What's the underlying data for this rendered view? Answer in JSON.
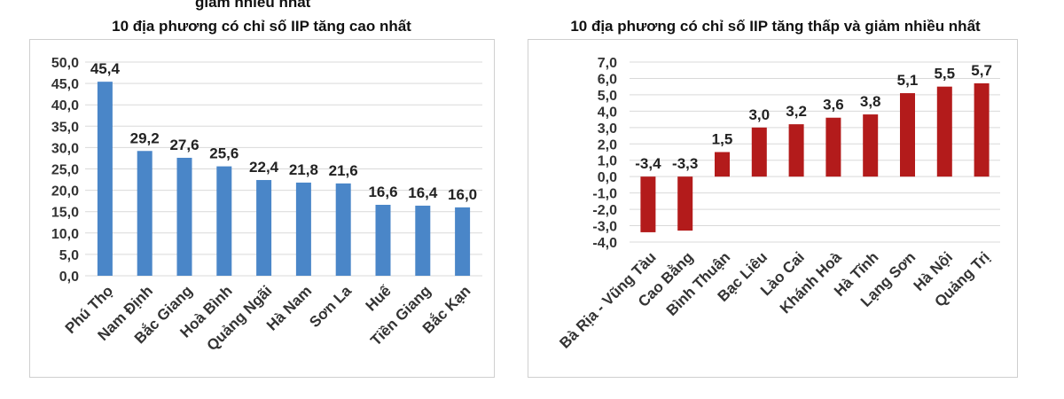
{
  "header_fragment": "giảm nhiều nhất",
  "chart_data": [
    {
      "type": "bar",
      "title": "10 địa phương có chỉ số IIP tăng cao nhất",
      "categories": [
        "Phú Thọ",
        "Nam Định",
        "Bắc Giang",
        "Hoà Bình",
        "Quảng Ngãi",
        "Hà Nam",
        "Sơn La",
        "Huế",
        "Tiền Giang",
        "Bắc Kạn"
      ],
      "values": [
        45.4,
        29.2,
        27.6,
        25.6,
        22.4,
        21.8,
        21.6,
        16.6,
        16.4,
        16.0
      ],
      "data_labels": [
        "45,4",
        "29,2",
        "27,6",
        "25,6",
        "22,4",
        "21,8",
        "21,6",
        "16,6",
        "16,4",
        "16,0"
      ],
      "ylim": [
        0,
        50
      ],
      "yticks": [
        "0,0",
        "5,0",
        "10,0",
        "15,0",
        "20,0",
        "25,0",
        "30,0",
        "35,0",
        "40,0",
        "45,0",
        "50,0"
      ],
      "grid": true,
      "bar_color": "#4a86c8"
    },
    {
      "type": "bar",
      "title": "10 địa phương có chỉ số IIP tăng thấp và giảm nhiều nhất",
      "categories": [
        "Bà Rịa - Vũng Tàu",
        "Cao Bằng",
        "Bình Thuận",
        "Bạc Liêu",
        "Lào Cai",
        "Khánh Hoà",
        "Hà Tĩnh",
        "Lạng Sơn",
        "Hà Nội",
        "Quảng Trị"
      ],
      "values": [
        -3.4,
        -3.3,
        1.5,
        3.0,
        3.2,
        3.6,
        3.8,
        5.1,
        5.5,
        5.7
      ],
      "data_labels": [
        "-3,4",
        "-3,3",
        "1,5",
        "3,0",
        "3,2",
        "3,6",
        "3,8",
        "5,1",
        "5,5",
        "5,7"
      ],
      "ylim": [
        -4,
        7
      ],
      "yticks": [
        "-4,0",
        "-3,0",
        "-2,0",
        "-1,0",
        "0,0",
        "1,0",
        "2,0",
        "3,0",
        "4,0",
        "5,0",
        "6,0",
        "7,0"
      ],
      "grid": true,
      "bar_color": "#b31b1b"
    }
  ]
}
